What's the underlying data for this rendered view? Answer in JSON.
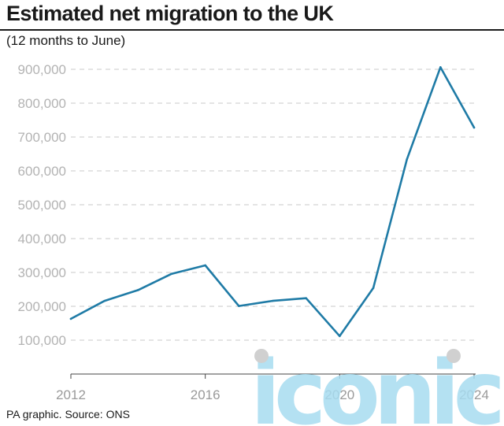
{
  "header": {
    "title": "Estimated net migration to the UK",
    "subtitle": "(12 months to June)"
  },
  "footer": {
    "source": "PA graphic. Source: ONS"
  },
  "watermark": {
    "text": "iconic",
    "color": "#a8dcf0"
  },
  "colors": {
    "line": "#1f7ba6",
    "grid": "#c8c8c8",
    "axis": "#444444"
  },
  "chart_data": {
    "type": "line",
    "title": "Estimated net migration to the UK",
    "subtitle": "(12 months to June)",
    "xlabel": "",
    "ylabel": "",
    "xlim": [
      2012,
      2024
    ],
    "ylim": [
      0,
      950000
    ],
    "grid": true,
    "x_ticks": [
      2012,
      2016,
      2020,
      2024
    ],
    "x_tick_labels": [
      "2012",
      "2016",
      "2020",
      "2024"
    ],
    "y_ticks": [
      100000,
      200000,
      300000,
      400000,
      500000,
      600000,
      700000,
      800000,
      900000
    ],
    "y_tick_labels": [
      "100,000",
      "200,000",
      "300,000",
      "400,000",
      "500,000",
      "600,000",
      "700,000",
      "800,000",
      "900,000"
    ],
    "series": [
      {
        "x": [
          2012,
          2013,
          2014,
          2015,
          2016,
          2017,
          2018,
          2019,
          2020,
          2021,
          2022,
          2023,
          2024
        ],
        "values": [
          163000,
          216000,
          248000,
          296000,
          321000,
          201000,
          216000,
          224000,
          112000,
          254000,
          634000,
          906000,
          728000
        ]
      }
    ]
  }
}
